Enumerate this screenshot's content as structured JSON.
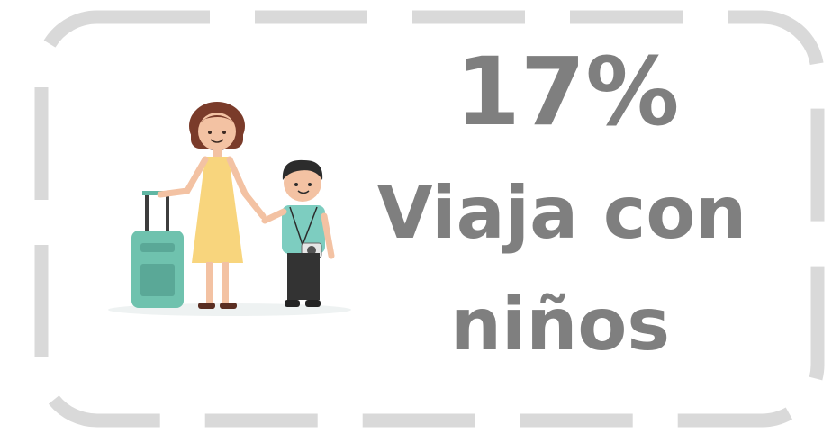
{
  "headline": "17%",
  "caption": [
    "Viaja con",
    "niños"
  ]
}
